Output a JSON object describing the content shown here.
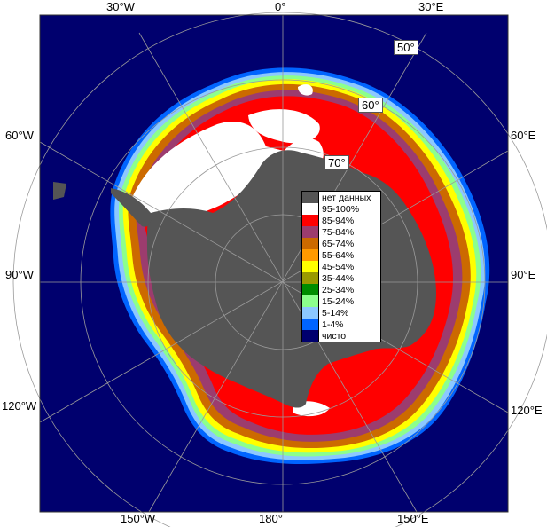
{
  "map": {
    "colors": {
      "ocean": "#00006e",
      "land": "#555555",
      "frame": "#ffffff",
      "graticule": "#9a9a9a"
    },
    "lon_labels": {
      "top_left": "30°W",
      "top_center": "0°",
      "top_right": "30°E",
      "left_upper": "60°W",
      "right_upper": "60°E",
      "left_mid": "90°W",
      "right_mid": "90°E",
      "left_lower": "120°W",
      "right_lower": "120°E",
      "bottom_left": "150°W",
      "bottom_center": "180°",
      "bottom_right": "150°E"
    },
    "lat_labels": {
      "lat50": "50°",
      "lat60": "60°",
      "lat70": "70°"
    }
  },
  "legend": [
    {
      "label": "нет данных",
      "color": "#555555"
    },
    {
      "label": "95-100%",
      "color": "#ffffff"
    },
    {
      "label": "85-94%",
      "color": "#ff0000"
    },
    {
      "label": "75-84%",
      "color": "#9c3c6e"
    },
    {
      "label": "65-74%",
      "color": "#cc6a00"
    },
    {
      "label": "55-64%",
      "color": "#ff9a00"
    },
    {
      "label": "45-54%",
      "color": "#ffff00"
    },
    {
      "label": "35-44%",
      "color": "#9a9a00"
    },
    {
      "label": "25-34%",
      "color": "#008c00"
    },
    {
      "label": "15-24%",
      "color": "#8cff8c"
    },
    {
      "label": "5-14%",
      "color": "#8cc8ff"
    },
    {
      "label": "1-4%",
      "color": "#0064ff"
    },
    {
      "label": "чисто",
      "color": "#00006e"
    }
  ]
}
